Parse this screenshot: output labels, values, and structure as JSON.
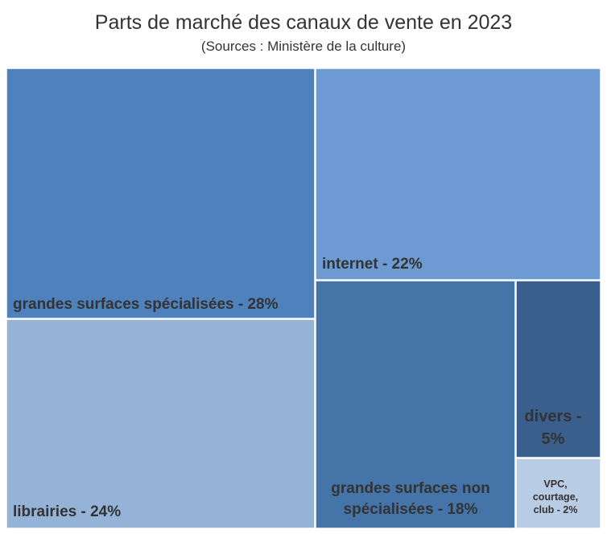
{
  "chart_data": {
    "type": "treemap",
    "title": "Parts de marché des canaux de vente en 2023",
    "subtitle": "(Sources : Ministère de la culture)",
    "items": [
      {
        "name": "grandes surfaces spécialisées",
        "value": 28,
        "label": "grandes surfaces spécialisées - 28%",
        "color": "#4f81bd"
      },
      {
        "name": "librairies",
        "value": 24,
        "label": "librairies - 24%",
        "color": "#95b3d7"
      },
      {
        "name": "internet",
        "value": 22,
        "label": "internet - 22%",
        "color": "#6d9ad2"
      },
      {
        "name": "grandes surfaces non spécialisées",
        "value": 18,
        "label": "grandes surfaces non spécialisées - 18%",
        "color": "#4574a8"
      },
      {
        "name": "divers",
        "value": 5,
        "label": "divers - 5%",
        "color": "#3a5f8c"
      },
      {
        "name": "VPC, courtage, club",
        "value": 2,
        "label": "VPC, courtage, club - 2%",
        "color": "#b8cce4"
      }
    ]
  }
}
